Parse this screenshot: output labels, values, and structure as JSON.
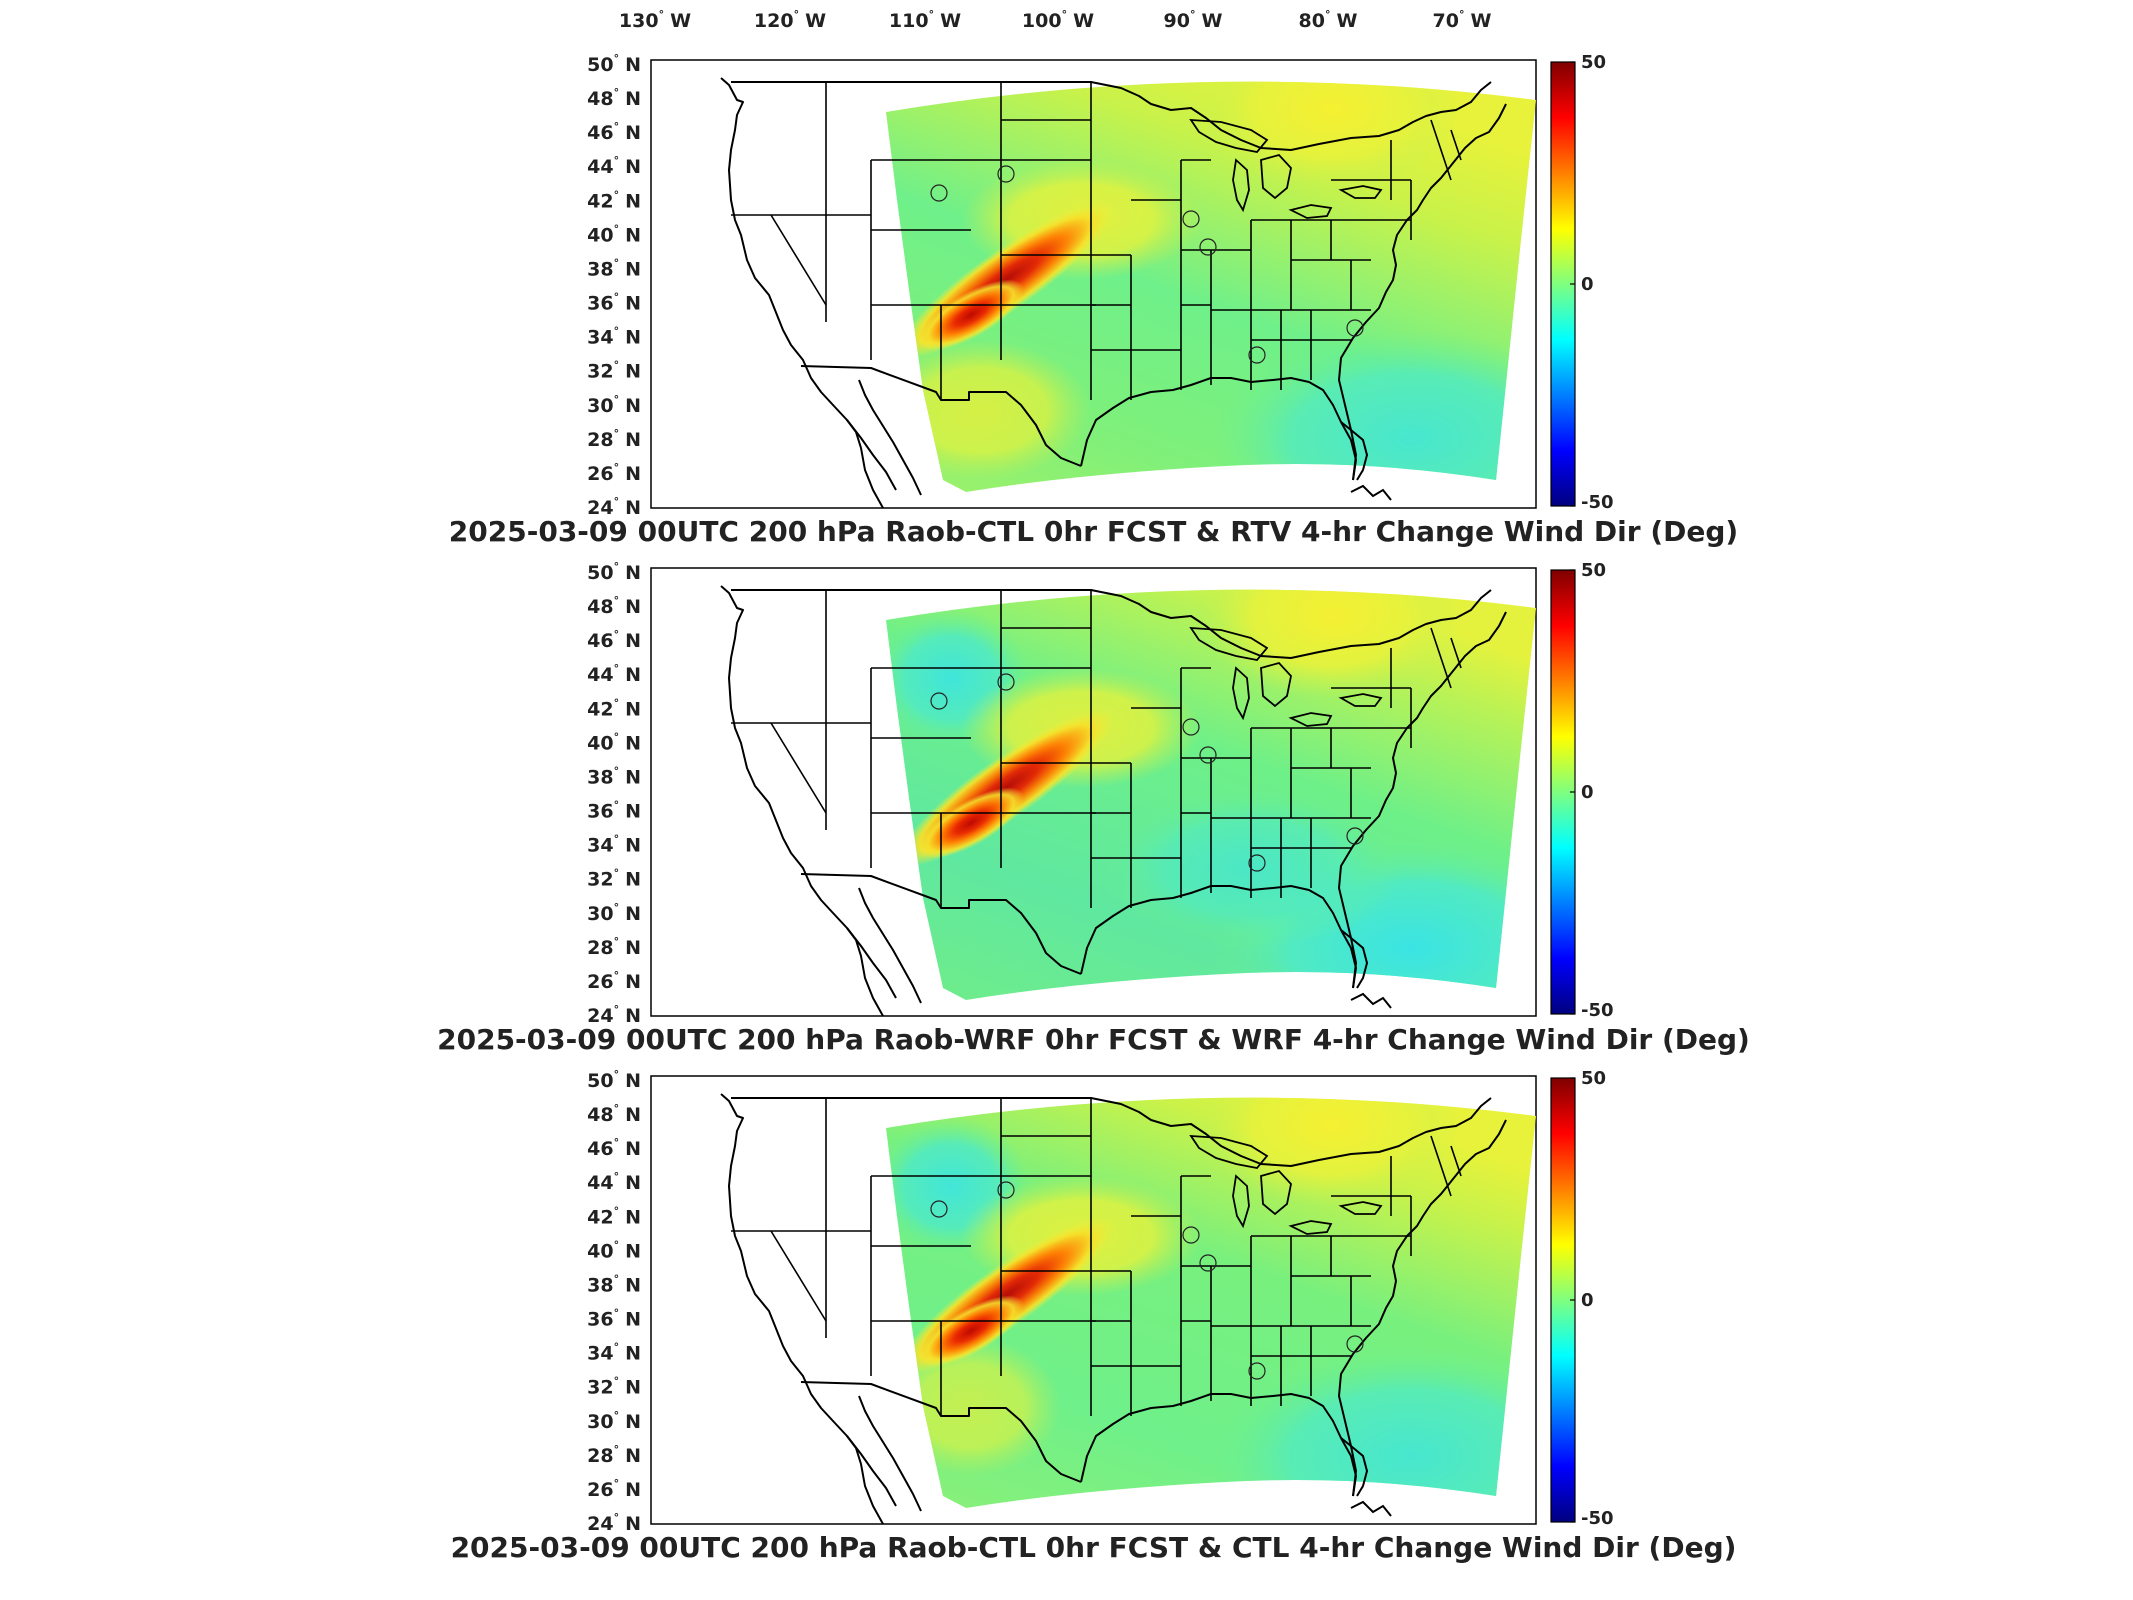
{
  "colors": {
    "cbar_stops": [
      "#00007f",
      "#0000ff",
      "#007fff",
      "#00ffff",
      "#7fff7f",
      "#ffff00",
      "#ff7f00",
      "#ff0000",
      "#7f0000"
    ],
    "field_green": "#7cf07a",
    "field_yellow": "#f0f040",
    "field_red": "#d81010",
    "field_cyan": "#30e8e0",
    "outline": "#000000"
  },
  "map": {
    "lon_labels": [
      {
        "deg": "130",
        "hem": "W"
      },
      {
        "deg": "120",
        "hem": "W"
      },
      {
        "deg": "110",
        "hem": "W"
      },
      {
        "deg": "100",
        "hem": "W"
      },
      {
        "deg": "90",
        "hem": "W"
      },
      {
        "deg": "80",
        "hem": "W"
      },
      {
        "deg": "70",
        "hem": "W"
      }
    ],
    "lat_labels": [
      {
        "deg": "50",
        "hem": "N"
      },
      {
        "deg": "48",
        "hem": "N"
      },
      {
        "deg": "46",
        "hem": "N"
      },
      {
        "deg": "44",
        "hem": "N"
      },
      {
        "deg": "42",
        "hem": "N"
      },
      {
        "deg": "40",
        "hem": "N"
      },
      {
        "deg": "38",
        "hem": "N"
      },
      {
        "deg": "36",
        "hem": "N"
      },
      {
        "deg": "34",
        "hem": "N"
      },
      {
        "deg": "32",
        "hem": "N"
      },
      {
        "deg": "30",
        "hem": "N"
      },
      {
        "deg": "28",
        "hem": "N"
      },
      {
        "deg": "26",
        "hem": "N"
      },
      {
        "deg": "24",
        "hem": "N"
      }
    ],
    "degree_symbol": "°"
  },
  "panels": [
    {
      "title": "2025-03-09 00UTC 200 hPa Raob-CTL 0hr FCST & RTV 4-hr Change Wind Dir (Deg)",
      "colorbar": {
        "max": "50",
        "mid": "0",
        "min": "-50"
      },
      "variant": 0
    },
    {
      "title": "2025-03-09 00UTC 200 hPa Raob-WRF 0hr FCST & WRF 4-hr Change Wind Dir (Deg)",
      "colorbar": {
        "max": "50",
        "mid": "0",
        "min": "-50"
      },
      "variant": 1
    },
    {
      "title": "2025-03-09 00UTC 200 hPa Raob-CTL 0hr FCST & CTL 4-hr Change Wind Dir (Deg)",
      "colorbar": {
        "max": "50",
        "mid": "0",
        "min": "-50"
      },
      "variant": 2
    }
  ]
}
